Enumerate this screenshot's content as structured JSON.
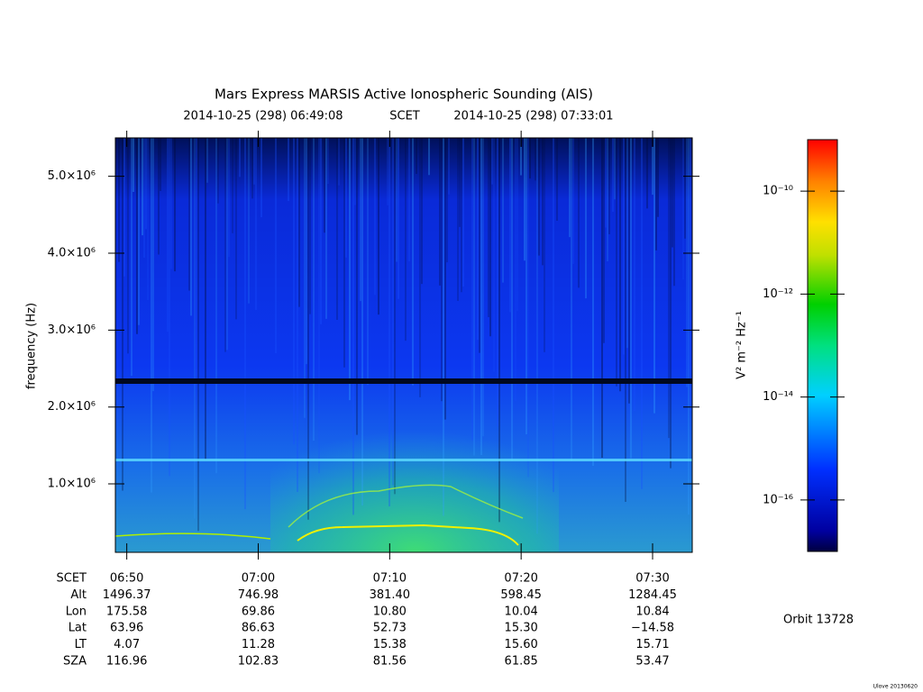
{
  "chart_data": {
    "type": "spectrogram",
    "title": "Mars Express MARSIS Active Ionospheric Sounding (AIS)",
    "start_time": "2014-10-25 (298) 06:49:08",
    "time_label": "SCET",
    "end_time": "2014-10-25 (298) 07:33:01",
    "ylabel": "frequency (Hz)",
    "xlim": [
      409.133,
      453.017
    ],
    "xticks": [
      {
        "value": 410,
        "label": "06:50"
      },
      {
        "value": 420,
        "label": "07:00"
      },
      {
        "value": 430,
        "label": "07:10"
      },
      {
        "value": 440,
        "label": "07:20"
      },
      {
        "value": 450,
        "label": "07:30"
      }
    ],
    "ylim": [
      110000,
      5500000
    ],
    "yticks": [
      {
        "value": 1000000,
        "label": "1.0×10⁶"
      },
      {
        "value": 2000000,
        "label": "2.0×10⁶"
      },
      {
        "value": 3000000,
        "label": "3.0×10⁶"
      },
      {
        "value": 4000000,
        "label": "4.0×10⁶"
      },
      {
        "value": 5000000,
        "label": "5.0×10⁶"
      }
    ],
    "colorbar": {
      "label": "V² m⁻² Hz⁻¹",
      "log": true,
      "zlim": [
        1e-17,
        1e-09
      ],
      "ticks": [
        {
          "value": 1e-10,
          "label": "10⁻¹⁰"
        },
        {
          "value": 1e-12,
          "label": "10⁻¹²"
        },
        {
          "value": 1e-14,
          "label": "10⁻¹⁴"
        },
        {
          "value": 1e-16,
          "label": "10⁻¹⁶"
        }
      ]
    },
    "ephemeris": {
      "header": "SCET",
      "rows": [
        {
          "name": "Alt",
          "values": [
            "1496.37",
            "746.98",
            "381.40",
            "598.45",
            "1284.45"
          ]
        },
        {
          "name": "Lon",
          "values": [
            "175.58",
            "69.86",
            "10.80",
            "10.04",
            "10.84"
          ]
        },
        {
          "name": "Lat",
          "values": [
            "63.96",
            "86.63",
            "52.73",
            "15.30",
            "−14.58"
          ]
        },
        {
          "name": "LT",
          "values": [
            "4.07",
            "11.28",
            "15.38",
            "15.60",
            "15.71"
          ]
        },
        {
          "name": "SZA",
          "values": [
            "116.96",
            "102.83",
            "81.56",
            "61.85",
            "53.47"
          ]
        }
      ]
    },
    "orbit": "Orbit 13728",
    "credit": "Ulove 20130620"
  }
}
